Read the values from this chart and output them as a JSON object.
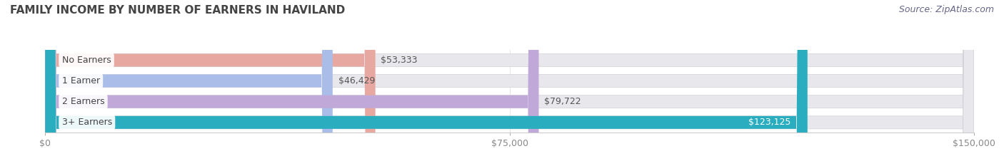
{
  "title": "FAMILY INCOME BY NUMBER OF EARNERS IN HAVILAND",
  "source": "Source: ZipAtlas.com",
  "categories": [
    "No Earners",
    "1 Earner",
    "2 Earners",
    "3+ Earners"
  ],
  "values": [
    53333,
    46429,
    79722,
    123125
  ],
  "labels": [
    "$53,333",
    "$46,429",
    "$79,722",
    "$123,125"
  ],
  "bar_colors": [
    "#E8A8A2",
    "#AABCE8",
    "#C0A8D8",
    "#2AAEBF"
  ],
  "label_inside": [
    false,
    false,
    false,
    true
  ],
  "background_color": "#ffffff",
  "bar_bg_color": "#e8e8ec",
  "xlim": [
    0,
    150000
  ],
  "xticks": [
    0,
    75000,
    150000
  ],
  "xticklabels": [
    "$0",
    "$75,000",
    "$150,000"
  ],
  "title_fontsize": 11,
  "source_fontsize": 9,
  "bar_label_fontsize": 9,
  "category_fontsize": 9,
  "tick_fontsize": 9,
  "bar_height": 0.62,
  "fig_width": 14.06,
  "fig_height": 2.33,
  "label_dark_color": "#555555",
  "label_white_color": "#ffffff",
  "category_text_color": "#444444",
  "title_color": "#444444",
  "source_color": "#666688",
  "tick_color": "#888888",
  "spine_color": "#cccccc"
}
